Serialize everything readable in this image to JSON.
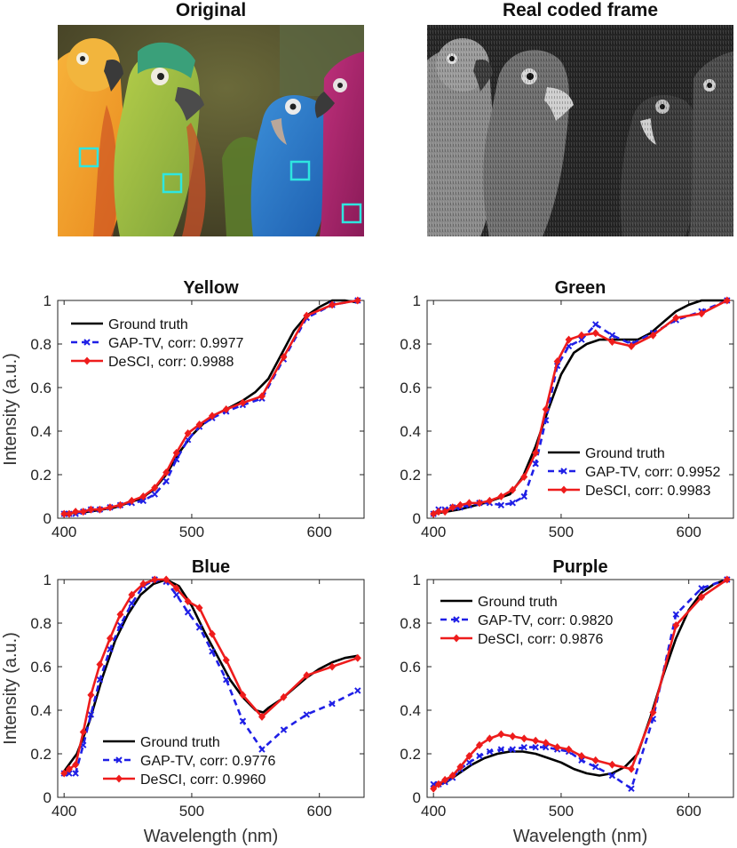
{
  "images": {
    "original": {
      "title": "Original"
    },
    "coded": {
      "title": "Real coded frame"
    }
  },
  "colors": {
    "ground_truth": "#000000",
    "gap_tv": "#1f1fe6",
    "desci": "#ee1c1c",
    "roi_box": "#2ee6e0"
  },
  "axis_labels": {
    "x": "Wavelength (nm)",
    "y": "Intensity (a.u.)"
  },
  "chart_data": [
    {
      "type": "line",
      "title": "Yellow",
      "xlabel": "",
      "ylabel": "Intensity (a.u.)",
      "xlim": [
        395,
        635
      ],
      "ylim": [
        0,
        1
      ],
      "xticks": [
        400,
        500,
        600
      ],
      "yticks": [
        0,
        0.2,
        0.4,
        0.6,
        0.8,
        1
      ],
      "legend_position": "top-left",
      "series": [
        {
          "name": "Ground truth",
          "label": "Ground truth",
          "x": [
            400,
            420,
            440,
            460,
            470,
            480,
            490,
            500,
            510,
            520,
            530,
            540,
            550,
            560,
            570,
            580,
            590,
            600,
            610,
            620,
            630
          ],
          "values": [
            0.02,
            0.03,
            0.05,
            0.09,
            0.13,
            0.2,
            0.3,
            0.38,
            0.44,
            0.48,
            0.51,
            0.54,
            0.58,
            0.64,
            0.75,
            0.86,
            0.93,
            0.97,
            1.0,
            1.0,
            0.99
          ]
        },
        {
          "name": "GAP-TV",
          "label": "GAP-TV, corr: 0.9977",
          "x": [
            400,
            404,
            409,
            415,
            421,
            428,
            436,
            444,
            453,
            462,
            471,
            480,
            488,
            497,
            506,
            516,
            527,
            540,
            555,
            572,
            590,
            610,
            630
          ],
          "values": [
            0.02,
            0.02,
            0.02,
            0.03,
            0.04,
            0.04,
            0.05,
            0.06,
            0.07,
            0.08,
            0.11,
            0.17,
            0.27,
            0.36,
            0.42,
            0.46,
            0.49,
            0.52,
            0.55,
            0.73,
            0.92,
            0.98,
            1.0
          ]
        },
        {
          "name": "DeSCI",
          "label": "DeSCI, corr: 0.9988",
          "x": [
            400,
            404,
            409,
            415,
            421,
            428,
            436,
            444,
            453,
            462,
            471,
            480,
            488,
            497,
            506,
            516,
            527,
            540,
            555,
            572,
            590,
            610,
            630
          ],
          "values": [
            0.02,
            0.02,
            0.03,
            0.03,
            0.04,
            0.04,
            0.05,
            0.06,
            0.08,
            0.1,
            0.14,
            0.21,
            0.3,
            0.39,
            0.43,
            0.47,
            0.5,
            0.53,
            0.56,
            0.74,
            0.93,
            0.98,
            1.0
          ]
        }
      ]
    },
    {
      "type": "line",
      "title": "Green",
      "xlabel": "",
      "ylabel": "",
      "xlim": [
        395,
        635
      ],
      "ylim": [
        0,
        1
      ],
      "xticks": [
        400,
        500,
        600
      ],
      "yticks": [
        0,
        0.2,
        0.4,
        0.6,
        0.8,
        1
      ],
      "legend_position": "bottom-right",
      "series": [
        {
          "name": "Ground truth",
          "label": "Ground truth",
          "x": [
            400,
            420,
            440,
            460,
            470,
            480,
            490,
            500,
            510,
            520,
            530,
            540,
            550,
            560,
            570,
            580,
            590,
            600,
            610,
            620,
            630
          ],
          "values": [
            0.02,
            0.04,
            0.07,
            0.11,
            0.19,
            0.33,
            0.5,
            0.66,
            0.76,
            0.8,
            0.82,
            0.82,
            0.82,
            0.82,
            0.85,
            0.9,
            0.95,
            0.98,
            1.0,
            1.0,
            1.0
          ]
        },
        {
          "name": "GAP-TV",
          "label": "GAP-TV, corr: 0.9952",
          "x": [
            400,
            404,
            409,
            415,
            421,
            428,
            436,
            444,
            453,
            462,
            471,
            480,
            488,
            497,
            506,
            516,
            527,
            540,
            555,
            572,
            590,
            610,
            630
          ],
          "values": [
            0.02,
            0.04,
            0.04,
            0.05,
            0.05,
            0.06,
            0.07,
            0.07,
            0.06,
            0.07,
            0.1,
            0.25,
            0.45,
            0.7,
            0.79,
            0.82,
            0.89,
            0.84,
            0.8,
            0.85,
            0.91,
            0.95,
            1.0
          ]
        },
        {
          "name": "DeSCI",
          "label": "DeSCI, corr: 0.9983",
          "x": [
            400,
            404,
            409,
            415,
            421,
            428,
            436,
            444,
            453,
            462,
            471,
            480,
            488,
            497,
            506,
            516,
            527,
            540,
            555,
            572,
            590,
            610,
            630
          ],
          "values": [
            0.02,
            0.03,
            0.03,
            0.05,
            0.06,
            0.07,
            0.07,
            0.08,
            0.1,
            0.13,
            0.19,
            0.3,
            0.5,
            0.72,
            0.82,
            0.84,
            0.85,
            0.81,
            0.79,
            0.84,
            0.92,
            0.94,
            1.0
          ]
        }
      ]
    },
    {
      "type": "line",
      "title": "Blue",
      "xlabel": "Wavelength (nm)",
      "ylabel": "Intensity (a.u.)",
      "xlim": [
        395,
        635
      ],
      "ylim": [
        0,
        1
      ],
      "xticks": [
        400,
        500,
        600
      ],
      "yticks": [
        0,
        0.2,
        0.4,
        0.6,
        0.8,
        1
      ],
      "legend_position": "bottom-left",
      "series": [
        {
          "name": "Ground truth",
          "label": "Ground truth",
          "x": [
            400,
            410,
            420,
            430,
            440,
            450,
            460,
            470,
            480,
            490,
            500,
            510,
            520,
            530,
            540,
            550,
            556,
            560,
            570,
            580,
            590,
            600,
            610,
            620,
            630
          ],
          "values": [
            0.12,
            0.2,
            0.35,
            0.55,
            0.72,
            0.84,
            0.93,
            0.98,
            1.0,
            0.97,
            0.88,
            0.76,
            0.65,
            0.54,
            0.46,
            0.4,
            0.39,
            0.41,
            0.45,
            0.5,
            0.55,
            0.59,
            0.62,
            0.64,
            0.65
          ]
        },
        {
          "name": "GAP-TV",
          "label": "GAP-TV, corr: 0.9776",
          "x": [
            400,
            404,
            409,
            415,
            421,
            428,
            436,
            444,
            453,
            462,
            471,
            480,
            488,
            497,
            506,
            516,
            527,
            540,
            555,
            572,
            590,
            610,
            630
          ],
          "values": [
            0.11,
            0.11,
            0.11,
            0.24,
            0.38,
            0.54,
            0.68,
            0.79,
            0.89,
            0.97,
            1.0,
            0.99,
            0.93,
            0.85,
            0.78,
            0.67,
            0.54,
            0.35,
            0.22,
            0.31,
            0.38,
            0.43,
            0.49
          ]
        },
        {
          "name": "DeSCI",
          "label": "DeSCI, corr: 0.9960",
          "x": [
            400,
            404,
            409,
            415,
            421,
            428,
            436,
            444,
            453,
            462,
            471,
            480,
            488,
            497,
            506,
            516,
            527,
            540,
            555,
            572,
            590,
            610,
            630
          ],
          "values": [
            0.11,
            0.13,
            0.15,
            0.3,
            0.47,
            0.61,
            0.73,
            0.84,
            0.93,
            0.98,
            1.0,
            1.0,
            0.96,
            0.9,
            0.87,
            0.75,
            0.63,
            0.47,
            0.37,
            0.46,
            0.56,
            0.6,
            0.64
          ]
        }
      ]
    },
    {
      "type": "line",
      "title": "Purple",
      "xlabel": "Wavelength (nm)",
      "ylabel": "",
      "xlim": [
        395,
        635
      ],
      "ylim": [
        0,
        1
      ],
      "xticks": [
        400,
        500,
        600
      ],
      "yticks": [
        0,
        0.2,
        0.4,
        0.6,
        0.8,
        1
      ],
      "legend_position": "top-left",
      "series": [
        {
          "name": "Ground truth",
          "label": "Ground truth",
          "x": [
            400,
            410,
            420,
            430,
            440,
            450,
            460,
            470,
            480,
            490,
            500,
            510,
            520,
            530,
            540,
            550,
            560,
            570,
            580,
            590,
            600,
            610,
            620,
            630
          ],
          "values": [
            0.05,
            0.07,
            0.11,
            0.15,
            0.18,
            0.2,
            0.21,
            0.21,
            0.2,
            0.18,
            0.16,
            0.13,
            0.11,
            0.1,
            0.11,
            0.14,
            0.2,
            0.37,
            0.56,
            0.73,
            0.86,
            0.94,
            0.98,
            1.0
          ]
        },
        {
          "name": "GAP-TV",
          "label": "GAP-TV, corr: 0.9820",
          "x": [
            400,
            404,
            409,
            415,
            421,
            428,
            436,
            444,
            453,
            462,
            471,
            480,
            488,
            497,
            506,
            516,
            527,
            540,
            555,
            572,
            590,
            610,
            630
          ],
          "values": [
            0.06,
            0.06,
            0.07,
            0.09,
            0.13,
            0.16,
            0.19,
            0.21,
            0.22,
            0.22,
            0.23,
            0.23,
            0.23,
            0.22,
            0.21,
            0.17,
            0.14,
            0.1,
            0.04,
            0.36,
            0.84,
            0.96,
            1.0
          ]
        },
        {
          "name": "DeSCI",
          "label": "DeSCI, corr: 0.9876",
          "x": [
            400,
            404,
            409,
            415,
            421,
            428,
            436,
            444,
            453,
            462,
            471,
            480,
            488,
            497,
            506,
            516,
            527,
            540,
            555,
            572,
            590,
            610,
            630
          ],
          "values": [
            0.04,
            0.06,
            0.08,
            0.1,
            0.14,
            0.19,
            0.24,
            0.27,
            0.29,
            0.28,
            0.27,
            0.26,
            0.25,
            0.23,
            0.22,
            0.19,
            0.17,
            0.15,
            0.13,
            0.39,
            0.79,
            0.92,
            1.0
          ]
        }
      ]
    }
  ]
}
